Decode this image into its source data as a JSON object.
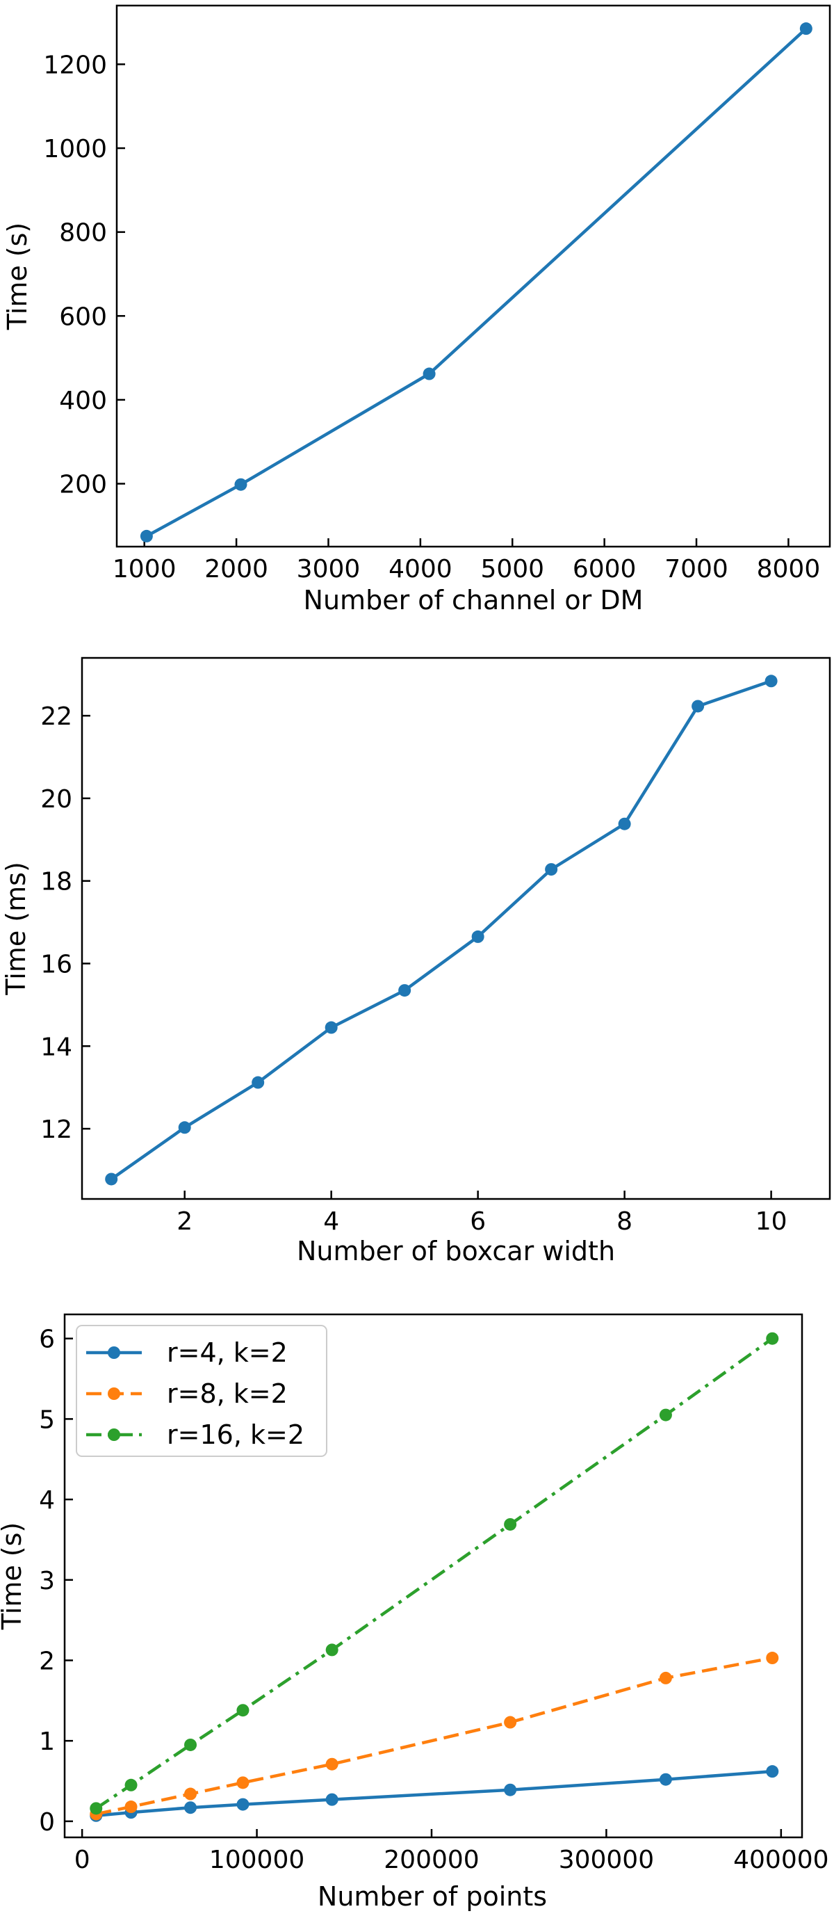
{
  "chart_data": [
    {
      "type": "line",
      "xlabel": "Number of channel or DM",
      "ylabel": "Time (s)",
      "xlim": [
        700,
        8450
      ],
      "ylim": [
        50,
        1340
      ],
      "xticks": [
        1000,
        2000,
        3000,
        4000,
        5000,
        6000,
        7000,
        8000
      ],
      "xtick_labels": [
        "1000",
        "2000",
        "3000",
        "4000",
        "5000",
        "6000",
        "7000",
        "8000"
      ],
      "yticks": [
        200,
        400,
        600,
        800,
        1000,
        1200
      ],
      "ytick_labels": [
        "200",
        "400",
        "600",
        "800",
        "1000",
        "1200"
      ],
      "series": [
        {
          "x": [
            1024,
            2048,
            4096,
            8192
          ],
          "values": [
            75,
            198,
            462,
            1285
          ],
          "color": "#1f77b4",
          "dash": "solid"
        }
      ]
    },
    {
      "type": "line",
      "xlabel": "Number of boxcar width",
      "ylabel": "Time (ms)",
      "xlim": [
        0.6,
        10.8
      ],
      "ylim": [
        10.3,
        23.4
      ],
      "xticks": [
        2,
        4,
        6,
        8,
        10
      ],
      "xtick_labels": [
        "2",
        "4",
        "6",
        "8",
        "10"
      ],
      "yticks": [
        12,
        14,
        16,
        18,
        20,
        22
      ],
      "ytick_labels": [
        "12",
        "14",
        "16",
        "18",
        "20",
        "22"
      ],
      "series": [
        {
          "x": [
            1,
            2,
            3,
            4,
            5,
            6,
            7,
            8,
            9,
            10
          ],
          "values": [
            10.78,
            12.03,
            13.12,
            14.45,
            15.35,
            16.65,
            18.28,
            19.38,
            22.23,
            22.84
          ],
          "color": "#1f77b4",
          "dash": "solid"
        }
      ]
    },
    {
      "type": "line",
      "xlabel": "Number of points",
      "ylabel": "Time (s)",
      "xlim": [
        -10000,
        412000
      ],
      "ylim": [
        -0.2,
        6.3
      ],
      "xticks": [
        0,
        100000,
        200000,
        300000,
        400000
      ],
      "xtick_labels": [
        "0",
        "100000",
        "200000",
        "300000",
        "400000"
      ],
      "yticks": [
        0,
        1,
        2,
        3,
        4,
        5,
        6
      ],
      "ytick_labels": [
        "0",
        "1",
        "2",
        "3",
        "4",
        "5",
        "6"
      ],
      "legend": "top-left",
      "series": [
        {
          "name": "r=4, k=2",
          "x": [
            8000,
            28000,
            62000,
            92000,
            143000,
            245000,
            334000,
            395000
          ],
          "values": [
            0.07,
            0.11,
            0.17,
            0.21,
            0.27,
            0.39,
            0.52,
            0.62
          ],
          "color": "#1f77b4",
          "dash": "solid"
        },
        {
          "name": "r=8, k=2",
          "x": [
            8000,
            28000,
            62000,
            92000,
            143000,
            245000,
            334000,
            395000
          ],
          "values": [
            0.09,
            0.18,
            0.34,
            0.48,
            0.71,
            1.23,
            1.78,
            2.03
          ],
          "color": "#ff7f0e",
          "dash": "dashed"
        },
        {
          "name": "r=16, k=2",
          "x": [
            8000,
            28000,
            62000,
            92000,
            143000,
            245000,
            334000,
            395000
          ],
          "values": [
            0.16,
            0.45,
            0.95,
            1.38,
            2.13,
            3.69,
            5.05,
            6.0
          ],
          "color": "#2ca02c",
          "dashdot": true,
          "dash": "dashdot"
        }
      ]
    }
  ]
}
